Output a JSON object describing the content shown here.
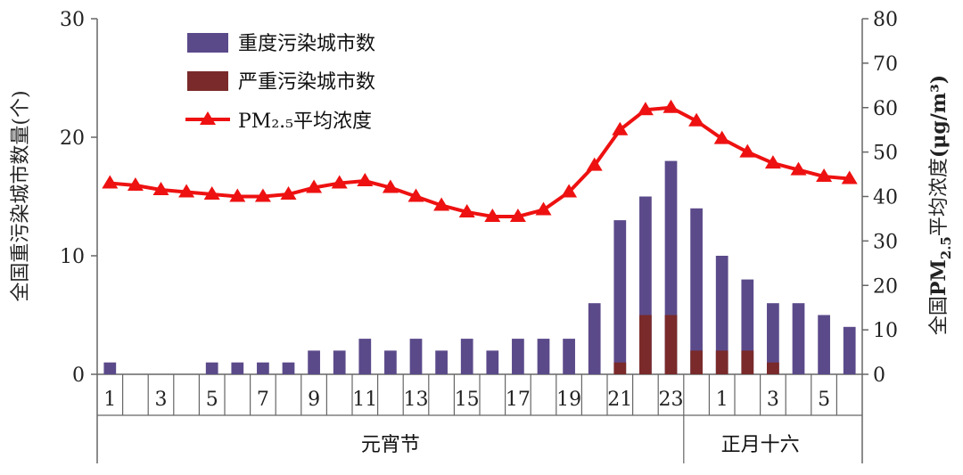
{
  "chart_data": {
    "type": "bar+line",
    "x_labels": [
      "1",
      "",
      "3",
      "",
      "5",
      "",
      "7",
      "",
      "9",
      "",
      "11",
      "",
      "13",
      "",
      "15",
      "",
      "17",
      "",
      "19",
      "",
      "21",
      "",
      "23",
      "",
      "1",
      "",
      "3",
      "",
      "5",
      ""
    ],
    "groups": [
      {
        "label": "元宵节",
        "start": 0,
        "end": 23
      },
      {
        "label": "正月十六",
        "start": 23,
        "end": 29
      }
    ],
    "series": [
      {
        "name": "重度污染城市数",
        "axis": "left",
        "kind": "bar",
        "color": "#5b4a8a",
        "values": [
          1,
          0,
          0,
          0,
          1,
          1,
          1,
          1,
          2,
          2,
          3,
          2,
          3,
          2,
          3,
          2,
          3,
          3,
          3,
          6,
          13,
          15,
          18,
          14,
          10,
          8,
          6,
          6,
          5,
          4
        ]
      },
      {
        "name": "严重污染城市数",
        "axis": "left",
        "kind": "bar",
        "color": "#7a2a2a",
        "values": [
          0,
          0,
          0,
          0,
          0,
          0,
          0,
          0,
          0,
          0,
          0,
          0,
          0,
          0,
          0,
          0,
          0,
          0,
          0,
          0,
          1,
          5,
          5,
          2,
          2,
          2,
          1,
          0,
          0,
          0
        ]
      },
      {
        "name": "PM₂.₅平均浓度",
        "axis": "right",
        "kind": "line",
        "color": "#ee1111",
        "values": [
          43,
          42.5,
          41.5,
          41,
          40.5,
          40,
          40,
          40.5,
          42,
          43,
          43.5,
          42,
          40,
          38,
          36.5,
          35.5,
          35.5,
          37,
          41,
          47,
          55,
          59.5,
          60,
          57,
          53,
          50,
          47.5,
          46,
          44.5,
          44
        ]
      }
    ],
    "y_left": {
      "label": "全国重污染城市数量(个)",
      "ticks": [
        "0",
        "10",
        "20",
        "30"
      ],
      "ylim": [
        0,
        30
      ]
    },
    "y_right": {
      "label_prefix": "全国",
      "label_bold": "PM",
      "label_sub": "2.5",
      "label_suffix": "平均浓度",
      "unit": "(μg/m³)",
      "ticks": [
        "0",
        "10",
        "20",
        "30",
        "40",
        "50",
        "60",
        "70",
        "80"
      ],
      "ylim": [
        0,
        80
      ]
    },
    "legend": {
      "placement": "top-left"
    }
  }
}
